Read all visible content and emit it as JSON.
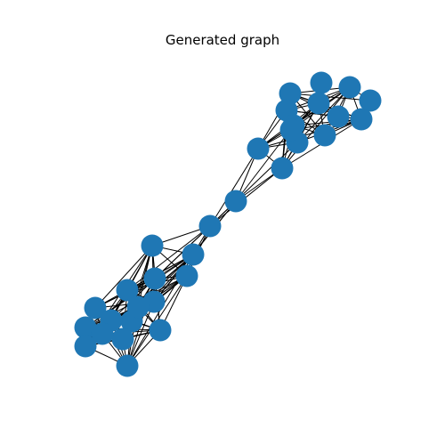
{
  "figure": {
    "title": "Generated graph"
  },
  "colors": {
    "node": "#1f77b4",
    "edge": "#000000",
    "background": "#ffffff"
  },
  "graph": {
    "node_count": 32,
    "clusters": [
      {
        "name": "upper-right",
        "nodes": 14
      },
      {
        "name": "bridge",
        "nodes": 2
      },
      {
        "name": "lower-left",
        "nodes": 16
      }
    ]
  }
}
